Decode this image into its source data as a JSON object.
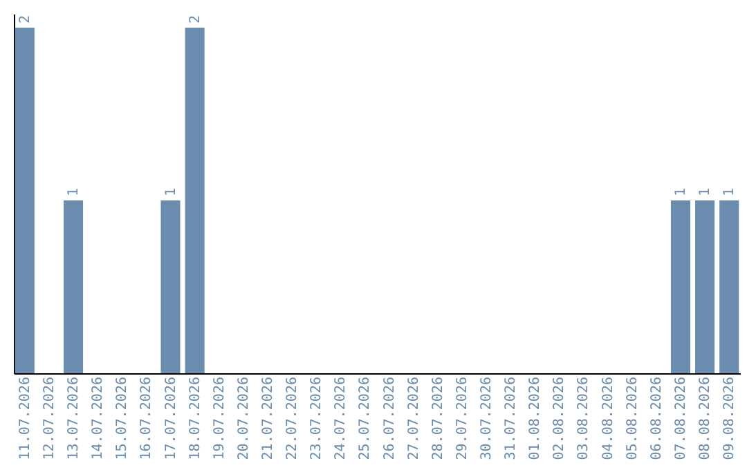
{
  "chart_data": {
    "type": "bar",
    "categories": [
      "11.07.2026",
      "12.07.2026",
      "13.07.2026",
      "14.07.2026",
      "15.07.2026",
      "16.07.2026",
      "17.07.2026",
      "18.07.2026",
      "19.07.2026",
      "20.07.2026",
      "21.07.2026",
      "22.07.2026",
      "23.07.2026",
      "24.07.2026",
      "25.07.2026",
      "26.07.2026",
      "27.07.2026",
      "28.07.2026",
      "29.07.2026",
      "30.07.2026",
      "31.07.2026",
      "01.08.2026",
      "02.08.2026",
      "03.08.2026",
      "04.08.2026",
      "05.08.2026",
      "06.08.2026",
      "07.08.2026",
      "08.08.2026",
      "09.08.2026"
    ],
    "values": [
      2,
      0,
      1,
      0,
      0,
      0,
      1,
      2,
      0,
      0,
      0,
      0,
      0,
      0,
      0,
      0,
      0,
      0,
      0,
      0,
      0,
      0,
      0,
      0,
      0,
      0,
      0,
      1,
      1,
      1
    ],
    "value_labels": [
      "2",
      null,
      "1",
      null,
      null,
      null,
      "1",
      "2",
      null,
      null,
      null,
      null,
      null,
      null,
      null,
      null,
      null,
      null,
      null,
      null,
      null,
      null,
      null,
      null,
      null,
      null,
      null,
      "1",
      "1",
      "1"
    ],
    "color": "#6a8caf",
    "ylim": [
      0,
      2.08
    ],
    "tick_labels": "x",
    "grid": false
  }
}
